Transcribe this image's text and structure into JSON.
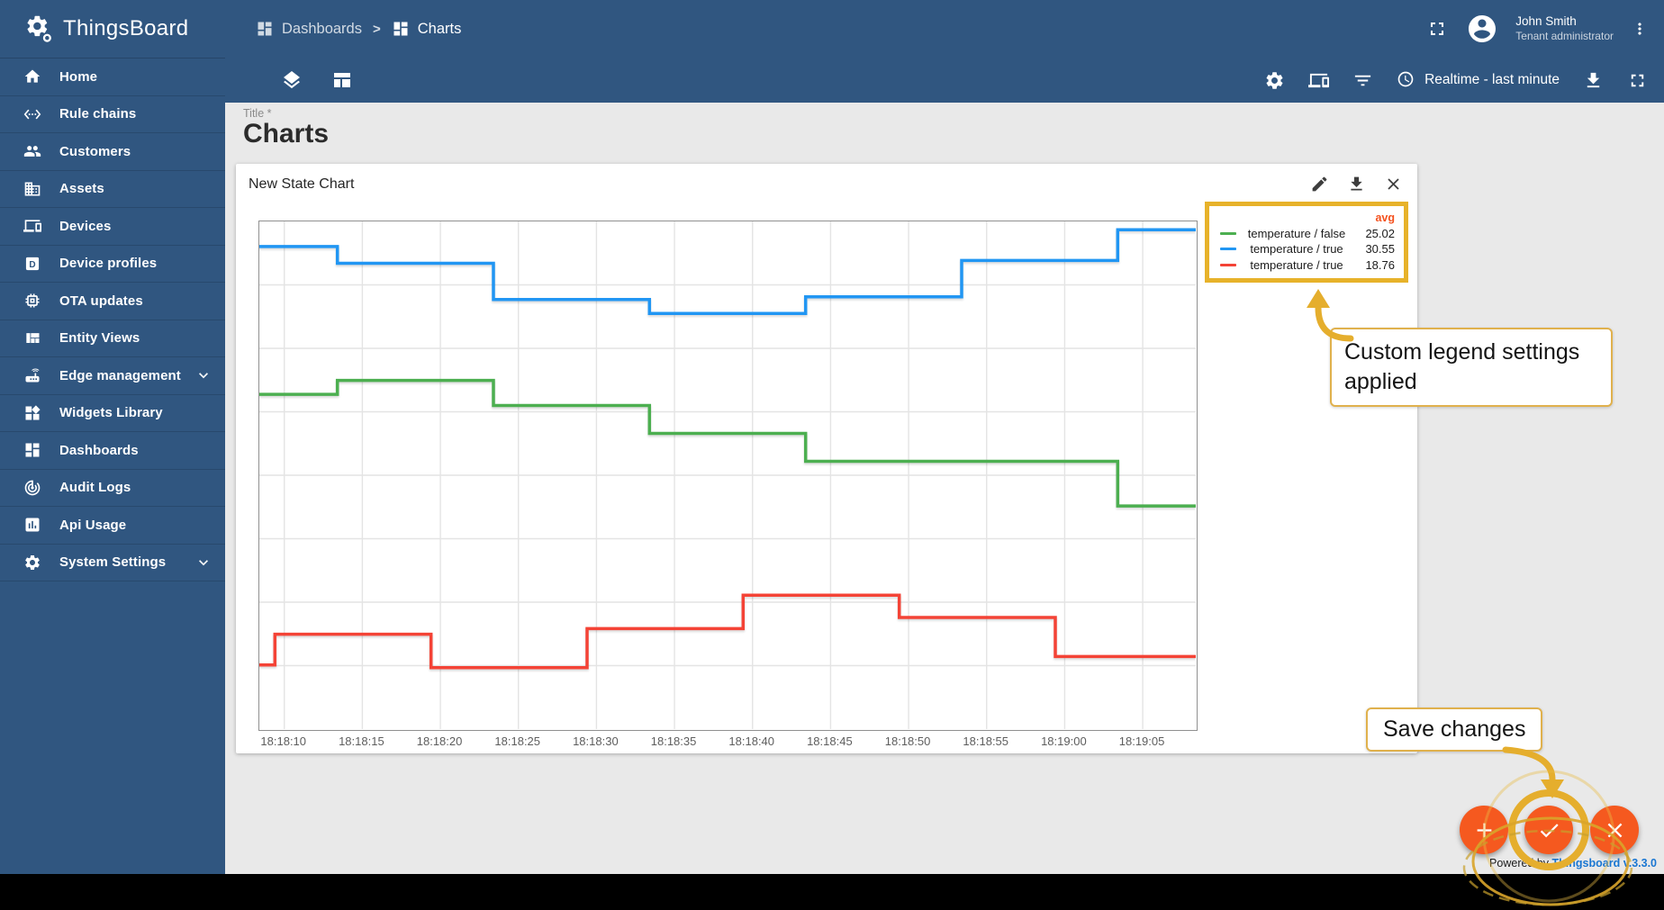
{
  "colors": {
    "primary": "#305680",
    "accent": "#f5591f",
    "annotation_gold": "#e5ae2d",
    "legend_border": "#e7b22a",
    "link_blue": "#1976d2",
    "line_green": "#4caf50",
    "line_blue": "#2196f3",
    "line_red": "#f44336",
    "legend_header": "#f4511e"
  },
  "app": {
    "brand": "ThingsBoard",
    "powered_prefix": "Powered by ",
    "powered_brand": "Thingsboard v.3.3.0"
  },
  "header": {
    "breadcrumb": [
      {
        "label": "Dashboards",
        "icon": "dashboard"
      },
      {
        "label": "Charts",
        "icon": "dashboard"
      }
    ],
    "separator": ">",
    "icons": {
      "fullscreen": "fullscreen",
      "avatar": "account",
      "menu": "more-vert"
    },
    "user": {
      "name": "John Smith",
      "role": "Tenant administrator"
    }
  },
  "toolbar": {
    "left_icons": [
      "layers",
      "manage-layouts"
    ],
    "right_icons_before": [
      "settings-gear",
      "devices",
      "filter"
    ],
    "timewindow": {
      "icon": "schedule",
      "label": "Realtime - last minute"
    },
    "right_icons_after": [
      "download",
      "fullscreen-expand"
    ]
  },
  "sidebar": {
    "items": [
      {
        "label": "Home",
        "icon": "home"
      },
      {
        "label": "Rule chains",
        "icon": "rule-chains"
      },
      {
        "label": "Customers",
        "icon": "customers"
      },
      {
        "label": "Assets",
        "icon": "assets"
      },
      {
        "label": "Devices",
        "icon": "devices"
      },
      {
        "label": "Device profiles",
        "icon": "device-profiles"
      },
      {
        "label": "OTA updates",
        "icon": "ota"
      },
      {
        "label": "Entity Views",
        "icon": "entity-views"
      },
      {
        "label": "Edge management",
        "icon": "edge",
        "chevron": true
      },
      {
        "label": "Widgets Library",
        "icon": "widgets"
      },
      {
        "label": "Dashboards",
        "icon": "dashboard"
      },
      {
        "label": "Audit Logs",
        "icon": "audit"
      },
      {
        "label": "Api Usage",
        "icon": "api-usage"
      },
      {
        "label": "System Settings",
        "icon": "settings-gear",
        "chevron": true
      }
    ]
  },
  "page": {
    "title_label": "Title *",
    "title": "Charts"
  },
  "widget": {
    "title": "New State Chart",
    "actions": [
      {
        "name": "edit",
        "icon": "edit"
      },
      {
        "name": "export",
        "icon": "download"
      },
      {
        "name": "close",
        "icon": "close"
      }
    ]
  },
  "legend": {
    "value_header": "avg",
    "rows": [
      {
        "label": "temperature / false",
        "value": "25.02",
        "color": "#4caf50"
      },
      {
        "label": "temperature / true",
        "value": "30.55",
        "color": "#2196f3"
      },
      {
        "label": "temperature / true",
        "value": "18.76",
        "color": "#f44336"
      }
    ]
  },
  "callouts": {
    "legend_note": "Custom legend settings applied",
    "save_note": "Save changes"
  },
  "fabs": [
    {
      "name": "add",
      "icon": "plus"
    },
    {
      "name": "apply-changes",
      "icon": "check",
      "highlighted": true
    },
    {
      "name": "discard-changes",
      "icon": "close"
    }
  ],
  "chart_data": {
    "type": "line",
    "step": true,
    "title": "New State Chart",
    "x_tick_labels": [
      "18:18:10",
      "18:18:15",
      "18:18:20",
      "18:18:25",
      "18:18:30",
      "18:18:35",
      "18:18:40",
      "18:18:45",
      "18:18:50",
      "18:18:55",
      "18:19:00",
      "18:19:05"
    ],
    "x_seconds_domain": [
      0,
      60
    ],
    "x_tick_seconds": [
      1.6,
      6.6,
      11.6,
      16.6,
      21.6,
      26.6,
      31.6,
      36.6,
      41.6,
      46.6,
      51.6,
      56.6
    ],
    "ylim": [
      14.4,
      32.6
    ],
    "h_grid_divisions": 8,
    "grid": true,
    "legend_position": "top-right",
    "legend_value_column": "avg",
    "series": [
      {
        "name": "temperature / false",
        "color": "#4caf50",
        "avg": 25.02,
        "points": [
          [
            0,
            26.4
          ],
          [
            5,
            26.9
          ],
          [
            15,
            26.0
          ],
          [
            25,
            25.0
          ],
          [
            35,
            24.0
          ],
          [
            55,
            22.4
          ]
        ]
      },
      {
        "name": "temperature / true",
        "color": "#2196f3",
        "avg": 30.55,
        "points": [
          [
            0,
            31.7
          ],
          [
            5,
            31.1
          ],
          [
            15,
            29.8
          ],
          [
            25,
            29.3
          ],
          [
            35,
            29.9
          ],
          [
            45,
            31.2
          ],
          [
            55,
            32.3
          ]
        ]
      },
      {
        "name": "temperature / true",
        "color": "#f44336",
        "avg": 18.76,
        "points": [
          [
            0,
            16.7
          ],
          [
            1,
            17.8
          ],
          [
            11,
            16.6
          ],
          [
            21,
            18.0
          ],
          [
            31,
            19.2
          ],
          [
            41,
            18.4
          ],
          [
            51,
            17.0
          ]
        ]
      }
    ]
  }
}
